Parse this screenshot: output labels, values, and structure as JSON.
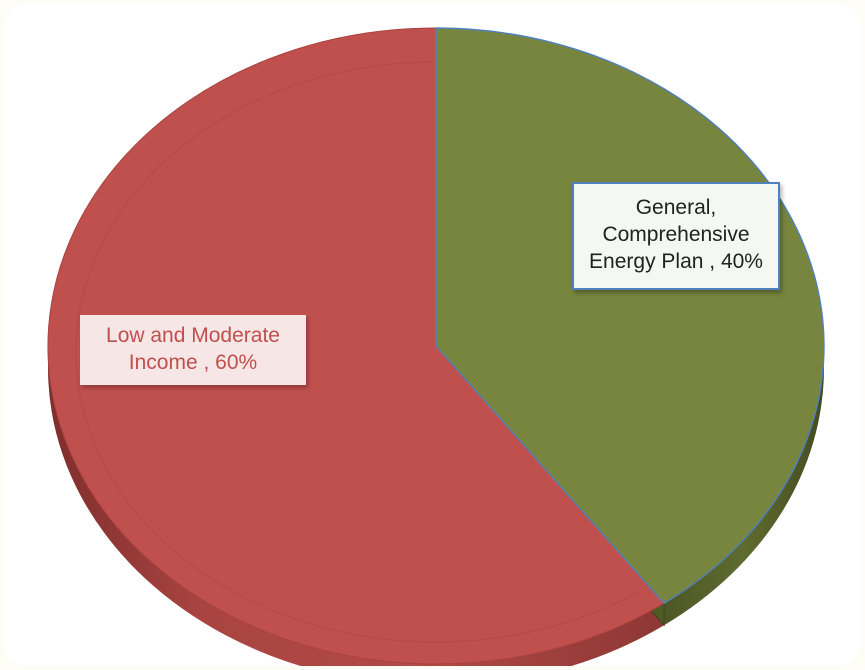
{
  "chart_data": {
    "type": "pie",
    "style": "3d",
    "categories": [
      "Low and Moderate Income",
      "General, Comprehensive Energy Plan"
    ],
    "values": [
      60,
      40
    ],
    "colors": [
      "#c0504d",
      "#77853f"
    ],
    "labels": [
      "Low and Moderate\nIncome , 60%",
      "General,\nComprehensive\nEnergy Plan , 40%"
    ],
    "title": "",
    "legend": "none"
  }
}
